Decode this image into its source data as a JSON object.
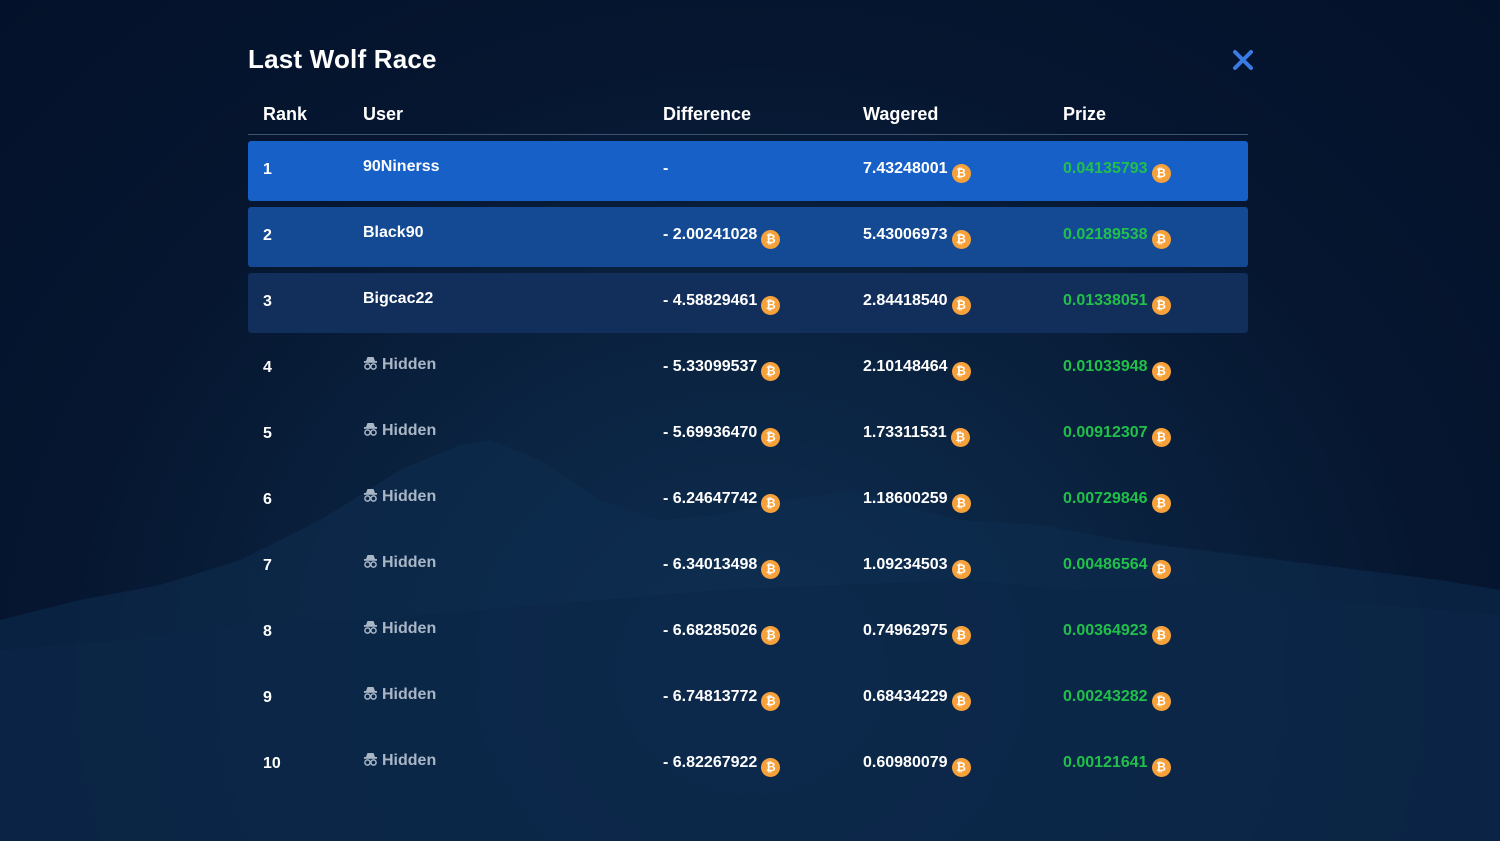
{
  "modal": {
    "title": "Last Wolf Race"
  },
  "icons": {
    "close": "close-icon",
    "coin": "bitcoin-icon",
    "hidden": "incognito-icon",
    "coin_glyph": "₿"
  },
  "colors": {
    "close": "#3a7be3",
    "coin": "#f7a13a",
    "prize": "#21c04a",
    "row1": "#1760c8",
    "row2": "#144a93",
    "row3": "#122f5c"
  },
  "table": {
    "headers": {
      "rank": "Rank",
      "user": "User",
      "difference": "Difference",
      "wagered": "Wagered",
      "prize": "Prize"
    },
    "rows": [
      {
        "rank": "1",
        "user": "90Ninerss",
        "hidden": false,
        "difference": "-",
        "wagered": "7.43248001",
        "prize": "0.04135793"
      },
      {
        "rank": "2",
        "user": "Black90",
        "hidden": false,
        "difference": "- 2.00241028",
        "wagered": "5.43006973",
        "prize": "0.02189538"
      },
      {
        "rank": "3",
        "user": "Bigcac22",
        "hidden": false,
        "difference": "- 4.58829461",
        "wagered": "2.84418540",
        "prize": "0.01338051"
      },
      {
        "rank": "4",
        "user": "Hidden",
        "hidden": true,
        "difference": "- 5.33099537",
        "wagered": "2.10148464",
        "prize": "0.01033948"
      },
      {
        "rank": "5",
        "user": "Hidden",
        "hidden": true,
        "difference": "- 5.69936470",
        "wagered": "1.73311531",
        "prize": "0.00912307"
      },
      {
        "rank": "6",
        "user": "Hidden",
        "hidden": true,
        "difference": "- 6.24647742",
        "wagered": "1.18600259",
        "prize": "0.00729846"
      },
      {
        "rank": "7",
        "user": "Hidden",
        "hidden": true,
        "difference": "- 6.34013498",
        "wagered": "1.09234503",
        "prize": "0.00486564"
      },
      {
        "rank": "8",
        "user": "Hidden",
        "hidden": true,
        "difference": "- 6.68285026",
        "wagered": "0.74962975",
        "prize": "0.00364923"
      },
      {
        "rank": "9",
        "user": "Hidden",
        "hidden": true,
        "difference": "- 6.74813772",
        "wagered": "0.68434229",
        "prize": "0.00243282"
      },
      {
        "rank": "10",
        "user": "Hidden",
        "hidden": true,
        "difference": "- 6.82267922",
        "wagered": "0.60980079",
        "prize": "0.00121641"
      }
    ]
  }
}
